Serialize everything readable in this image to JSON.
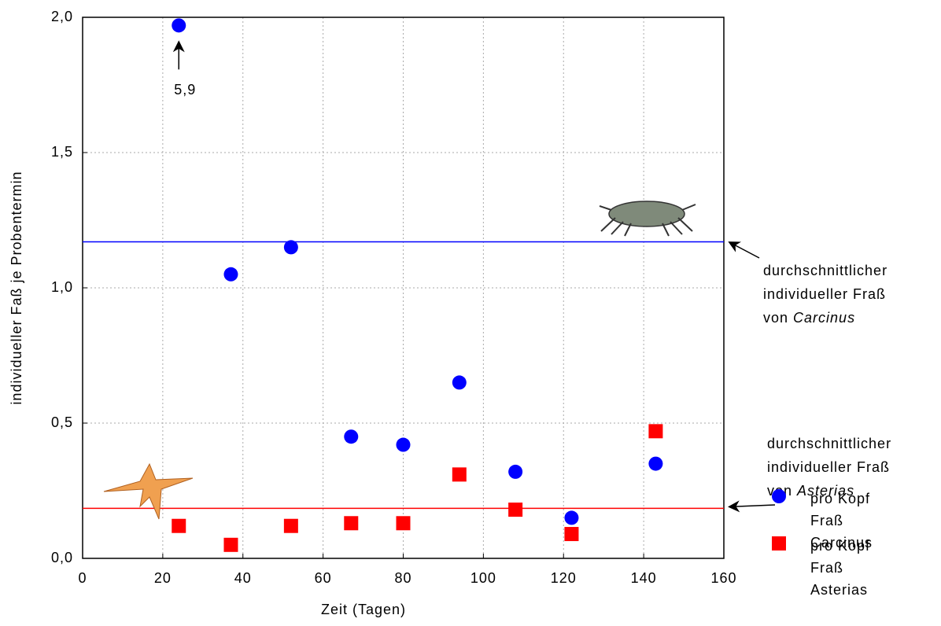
{
  "chart_data": {
    "type": "scatter",
    "x_label": "Zeit (Tagen)",
    "y_label": "individueller Faß je Probentermin",
    "xlim": [
      0,
      160
    ],
    "ylim": [
      0,
      2
    ],
    "xticks": [
      0,
      20,
      40,
      60,
      80,
      100,
      120,
      140,
      160
    ],
    "yticks": [
      {
        "value": 0,
        "label": "0,0"
      },
      {
        "value": 0.5,
        "label": "0,5"
      },
      {
        "value": 1,
        "label": "1,0"
      },
      {
        "value": 1.5,
        "label": "1,5"
      },
      {
        "value": 2,
        "label": "2,0"
      }
    ],
    "grid": true,
    "series": [
      {
        "name": "pro Kopf Fraß Carcinus",
        "color": "#0000ff",
        "marker": "circle",
        "x": [
          24,
          37,
          52,
          67,
          80,
          94,
          108,
          122,
          143
        ],
        "values": [
          1.97,
          1.05,
          1.15,
          0.45,
          0.42,
          0.65,
          0.32,
          0.15,
          0.35
        ]
      },
      {
        "name": "pro Kopf Fraß Asterias",
        "color": "#ff0000",
        "marker": "square",
        "x": [
          24,
          37,
          52,
          67,
          80,
          94,
          108,
          122,
          143
        ],
        "values": [
          0.12,
          0.05,
          0.12,
          0.13,
          0.13,
          0.31,
          0.18,
          0.09,
          0.47
        ]
      }
    ],
    "reference_lines": [
      {
        "value": 1.17,
        "color": "#0000ff",
        "label_lines": [
          "durchschnittlicher",
          "individueller Fraß",
          "von"
        ],
        "label_species": "Carcinus"
      },
      {
        "value": 0.185,
        "color": "#ff0000",
        "label_lines": [
          "durchschnittlicher",
          "individueller Fraß",
          "von"
        ],
        "label_species": "Asterias"
      }
    ],
    "annotations": [
      {
        "text": "5,9",
        "x": 24,
        "y": 1.97
      }
    ]
  }
}
